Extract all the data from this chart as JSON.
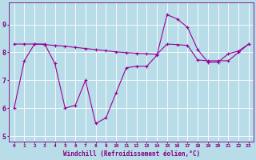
{
  "x": [
    0,
    1,
    2,
    3,
    4,
    5,
    6,
    7,
    8,
    9,
    10,
    11,
    12,
    13,
    14,
    15,
    16,
    17,
    18,
    19,
    20,
    21,
    22,
    23
  ],
  "line1": [
    6.0,
    7.7,
    8.3,
    8.3,
    7.6,
    6.0,
    6.1,
    7.0,
    5.45,
    5.65,
    6.55,
    7.45,
    7.5,
    7.5,
    7.9,
    9.35,
    9.2,
    8.9,
    8.1,
    7.65,
    7.65,
    7.95,
    8.05,
    8.3
  ],
  "line2_start": 8.3,
  "line2_end": 8.3,
  "line2": [
    8.3,
    8.3,
    8.3,
    8.28,
    8.25,
    8.22,
    8.18,
    8.14,
    8.1,
    8.06,
    8.02,
    7.99,
    7.97,
    7.95,
    7.93,
    8.3,
    8.28,
    8.25,
    7.73,
    7.7,
    7.7,
    7.7,
    8.0,
    8.3
  ],
  "line_color": "#990099",
  "bg_color": "#b8dde8",
  "grid_color": "#c8e8f0",
  "xlabel": "Windchill (Refroidissement éolien,°C)",
  "xlabel_color": "#800080",
  "tick_color": "#800080",
  "ylabel_ticks": [
    5,
    6,
    7,
    8,
    9
  ],
  "xtick_labels": [
    "0",
    "1",
    "2",
    "3",
    "4",
    "5",
    "6",
    "7",
    "8",
    "9",
    "10",
    "11",
    "12",
    "13",
    "14",
    "15",
    "16",
    "17",
    "18",
    "19",
    "20",
    "21",
    "22",
    "23"
  ],
  "xlim": [
    -0.5,
    23.5
  ],
  "ylim": [
    4.8,
    9.8
  ],
  "markersize": 2.5
}
